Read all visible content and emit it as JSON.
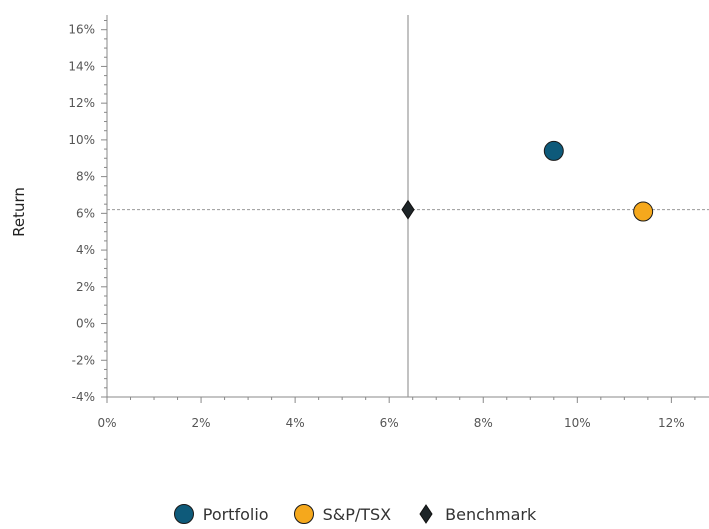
{
  "chart_data": {
    "type": "scatter",
    "xlabel": "",
    "ylabel": "Return",
    "xlim": [
      0,
      12.8
    ],
    "ylim": [
      -4,
      16.8
    ],
    "x_ticks": [
      0,
      2,
      4,
      6,
      8,
      10,
      12
    ],
    "y_ticks": [
      -4,
      -2,
      0,
      2,
      4,
      6,
      8,
      10,
      12,
      14,
      16
    ],
    "x_tick_labels": [
      "0%",
      "2%",
      "4%",
      "6%",
      "8%",
      "10%",
      "12%"
    ],
    "y_tick_labels": [
      "-4%",
      "-2%",
      "0%",
      "2%",
      "4%",
      "6%",
      "8%",
      "10%",
      "12%",
      "14%",
      "16%"
    ],
    "reference_lines": {
      "x": 6.4,
      "y": 6.2
    },
    "series": [
      {
        "name": "Portfolio",
        "x": 9.5,
        "y": 9.4,
        "color": "#0e5a7a",
        "marker": "circle"
      },
      {
        "name": "S&P/TSX",
        "x": 11.4,
        "y": 6.1,
        "color": "#f5a81c",
        "marker": "circle"
      },
      {
        "name": "Benchmark",
        "x": 6.4,
        "y": 6.2,
        "color": "#1e2528",
        "marker": "diamond"
      }
    ],
    "grid": false,
    "legend_position": "bottom-center"
  }
}
